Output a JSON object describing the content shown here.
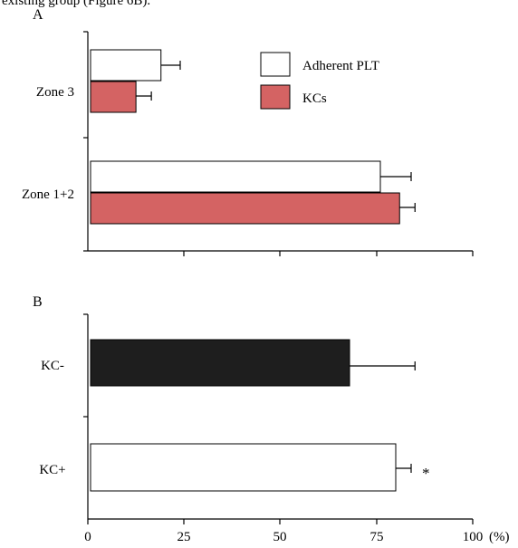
{
  "caption_fragment": "existing group (Figure 6B).",
  "chart_data": [
    {
      "type": "bar",
      "orientation": "horizontal",
      "panel_label": "A",
      "categories": [
        "Zone 3",
        "Zone 1+2"
      ],
      "series": [
        {
          "name": "Adherent PLT",
          "color": "#ffffff",
          "values": [
            19,
            76
          ],
          "error": [
            5,
            8
          ]
        },
        {
          "name": "KCs",
          "color": "#d46363",
          "values": [
            12.5,
            81
          ],
          "error": [
            4,
            4
          ]
        }
      ],
      "xlim": [
        0,
        100
      ],
      "legend_position": "top-right",
      "grid": false
    },
    {
      "type": "bar",
      "orientation": "horizontal",
      "panel_label": "B",
      "categories": [
        "KC-",
        "KC+"
      ],
      "series": [
        {
          "values": [
            68,
            80
          ],
          "error": [
            17,
            4
          ],
          "colors": [
            "#1e1e1e",
            "#ffffff"
          ]
        }
      ],
      "annotations": [
        {
          "category": "KC+",
          "text": "*"
        }
      ],
      "xlim": [
        0,
        100
      ],
      "xticks": [
        0,
        25,
        50,
        75,
        100
      ],
      "xtick_labels": [
        "0",
        "25",
        "50",
        "75",
        "100"
      ],
      "x_unit": "(%)",
      "grid": false
    }
  ]
}
